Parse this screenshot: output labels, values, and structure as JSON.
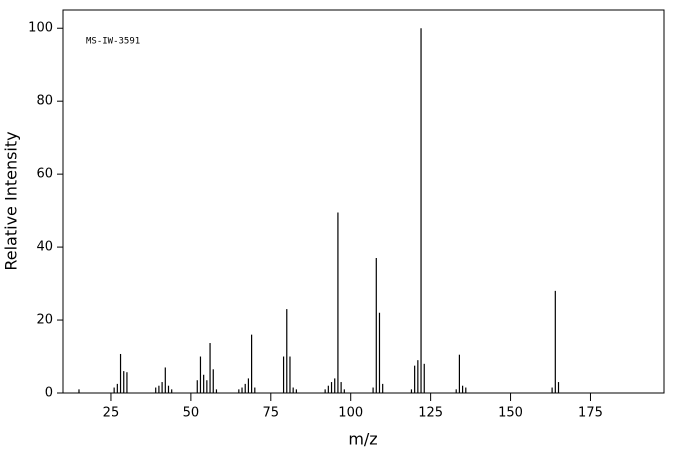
{
  "chart_data": {
    "type": "bar",
    "annotation": "MS-IW-3591",
    "x_label": "m/z",
    "y_label": "Relative Intensity",
    "color": "#000000",
    "x": [
      15,
      26,
      27,
      28,
      29,
      30,
      39,
      40,
      41,
      42,
      43,
      44,
      52,
      53,
      54,
      55,
      56,
      57,
      58,
      65,
      66,
      67,
      68,
      69,
      70,
      79,
      80,
      81,
      82,
      83,
      92,
      93,
      94,
      95,
      96,
      97,
      98,
      107,
      108,
      109,
      110,
      119,
      120,
      121,
      122,
      123,
      133,
      134,
      135,
      136,
      163,
      164,
      165
    ],
    "values": [
      1,
      1.5,
      2.5,
      10.7,
      6,
      5.7,
      1.5,
      2,
      3,
      7,
      2,
      1,
      3.5,
      10,
      5,
      3.5,
      13.7,
      6.5,
      1,
      1,
      1.5,
      2.5,
      4,
      16,
      1.5,
      10,
      23,
      10,
      1.5,
      1,
      1,
      2,
      3,
      4,
      49.5,
      3,
      1,
      1.5,
      37,
      22,
      2.5,
      1,
      7.5,
      9,
      100,
      8,
      1,
      10.5,
      2,
      1.5,
      1.5,
      28,
      3
    ],
    "xlim": [
      10,
      198
    ],
    "ylim": [
      0,
      105
    ],
    "xticks": [
      25,
      50,
      75,
      100,
      125,
      150,
      175
    ],
    "yticks": [
      0,
      20,
      40,
      60,
      80,
      100
    ]
  }
}
